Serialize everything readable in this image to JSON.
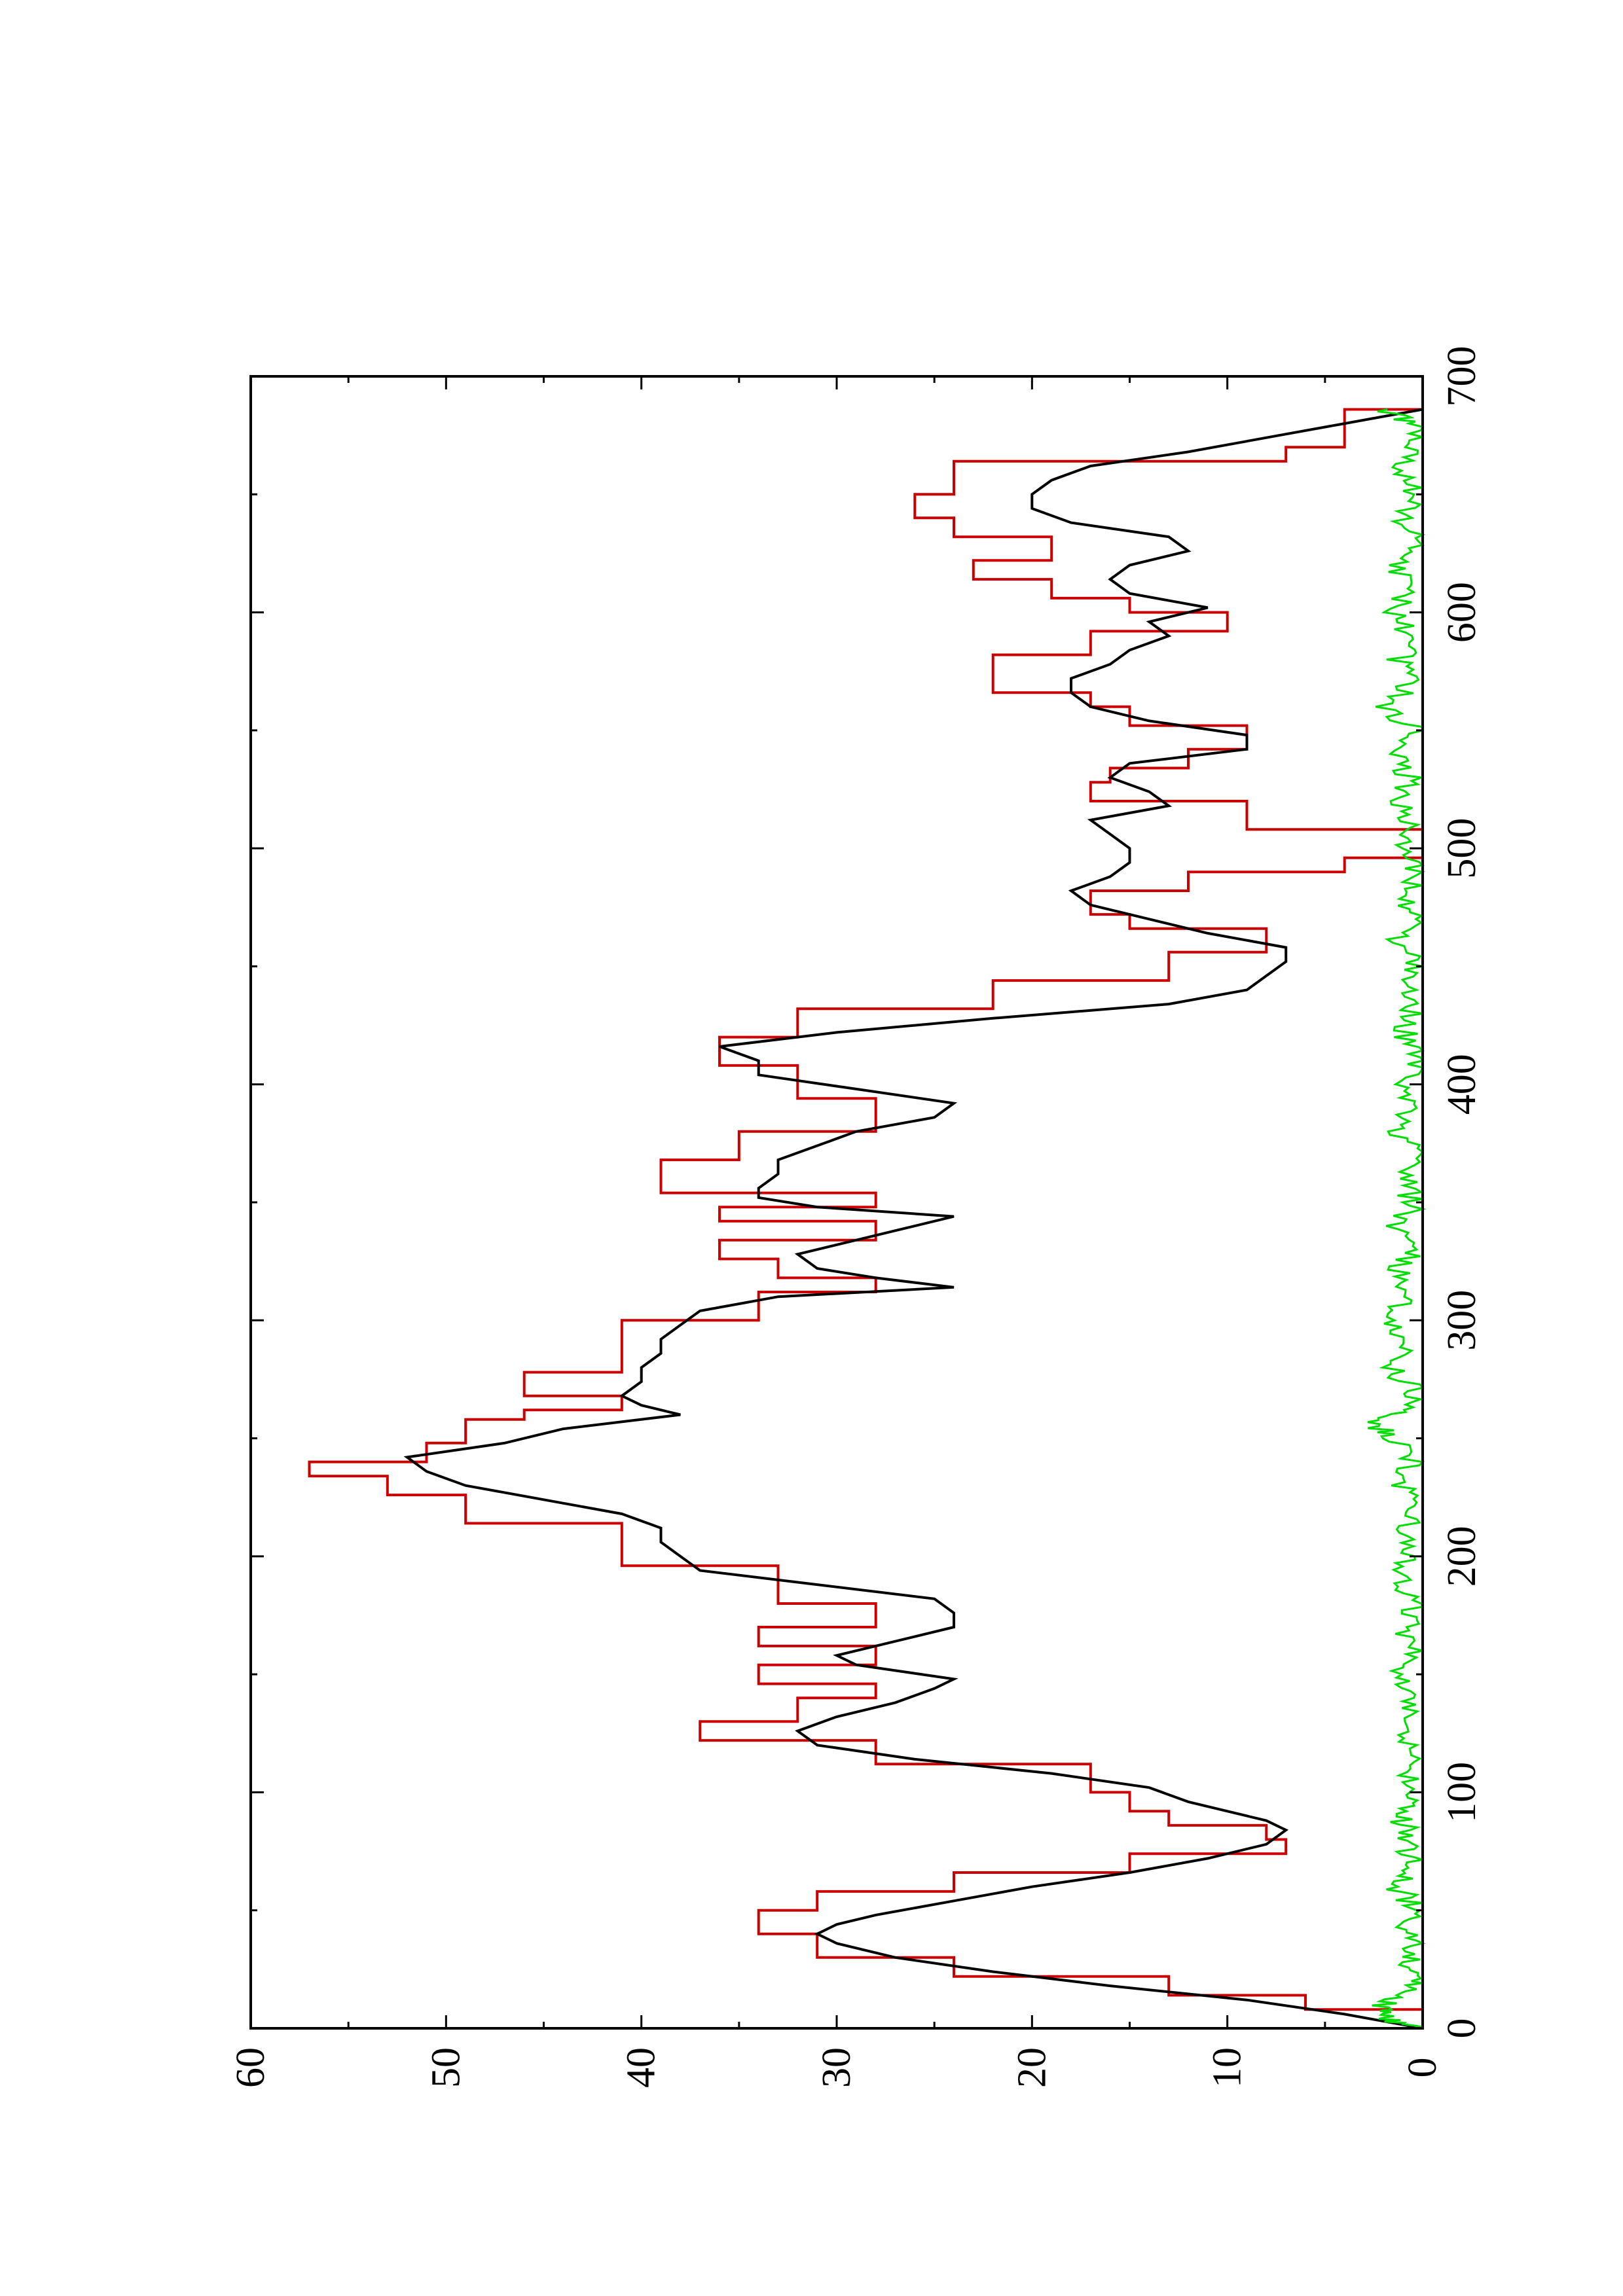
{
  "chart_data": {
    "type": "line",
    "orientation": "rotated-90-ccw",
    "title": "",
    "xlabel": "",
    "ylabel": "",
    "xlim": [
      0,
      700
    ],
    "ylim": [
      0,
      60
    ],
    "xticks": [
      0,
      100,
      200,
      300,
      400,
      500,
      600,
      700
    ],
    "yticks": [
      0,
      10,
      20,
      30,
      40,
      50,
      60
    ],
    "x_tick_labels": [
      "0",
      "100",
      "200",
      "300",
      "400",
      "500",
      "600",
      "700"
    ],
    "y_tick_labels": [
      "0",
      "10",
      "20",
      "30",
      "40",
      "50",
      "60"
    ],
    "grid": false,
    "legend": "none",
    "series": [
      {
        "color": "#cc0000",
        "style": "step",
        "x": [
          0,
          8,
          14,
          22,
          30,
          40,
          50,
          58,
          66,
          74,
          80,
          86,
          92,
          100,
          112,
          122,
          130,
          140,
          146,
          154,
          162,
          170,
          180,
          196,
          214,
          226,
          234,
          240,
          248,
          258,
          262,
          268,
          278,
          300,
          312,
          318,
          326,
          334,
          342,
          348,
          354,
          368,
          380,
          394,
          408,
          420,
          432,
          444,
          456,
          466,
          472,
          482,
          490,
          496,
          508,
          520,
          528,
          534,
          542,
          552,
          560,
          566,
          582,
          592,
          600,
          606,
          614,
          622,
          632,
          640,
          650,
          664,
          670,
          686
        ],
        "y": [
          0,
          6,
          13,
          24,
          31,
          34,
          31,
          24,
          15,
          7,
          8,
          13,
          15,
          17,
          28,
          37,
          32,
          28,
          34,
          28,
          34,
          28,
          33,
          41,
          49,
          53,
          57,
          51,
          49,
          46,
          41,
          46,
          41,
          34,
          28,
          33,
          36,
          28,
          36,
          28,
          39,
          35,
          28,
          32,
          36,
          32,
          22,
          13,
          8,
          15,
          17,
          12,
          4,
          0,
          9,
          17,
          16,
          12,
          9,
          15,
          17,
          22,
          17,
          10,
          15,
          19,
          23,
          19,
          24,
          26,
          24,
          7,
          4,
          0
        ]
      },
      {
        "color": "#000000",
        "style": "line",
        "x": [
          0,
          6,
          12,
          18,
          24,
          30,
          36,
          40,
          44,
          48,
          54,
          60,
          66,
          72,
          78,
          84,
          88,
          92,
          96,
          102,
          108,
          114,
          120,
          126,
          132,
          138,
          144,
          148,
          154,
          158,
          164,
          170,
          176,
          182,
          188,
          194,
          200,
          206,
          212,
          218,
          224,
          230,
          236,
          242,
          248,
          254,
          260,
          264,
          268,
          274,
          280,
          286,
          292,
          298,
          304,
          310,
          314,
          318,
          322,
          328,
          334,
          340,
          344,
          348,
          352,
          356,
          362,
          368,
          374,
          380,
          386,
          392,
          398,
          404,
          410,
          416,
          422,
          428,
          434,
          440,
          446,
          452,
          458,
          464,
          470,
          476,
          482,
          488,
          494,
          500,
          506,
          512,
          518,
          524,
          530,
          536,
          542,
          548,
          554,
          560,
          566,
          572,
          578,
          584,
          590,
          596,
          602,
          608,
          614,
          620,
          626,
          632,
          638,
          644,
          650,
          656,
          662,
          668,
          674,
          680,
          686
        ],
        "y": [
          0,
          4,
          9,
          16,
          22,
          27,
          30,
          31,
          30,
          28,
          24,
          20,
          15,
          11,
          8,
          7,
          8,
          10,
          12,
          14,
          19,
          26,
          31,
          32,
          30,
          27,
          25,
          24,
          29,
          30,
          27,
          24,
          24,
          25,
          31,
          37,
          38,
          39,
          39,
          41,
          45,
          49,
          51,
          52,
          47,
          44,
          38,
          40,
          41,
          40,
          40,
          39,
          39,
          38,
          37,
          33,
          24,
          28,
          31,
          32,
          29,
          26,
          24,
          31,
          34,
          34,
          33,
          33,
          31,
          29,
          25,
          24,
          29,
          34,
          34,
          36,
          30,
          22,
          13,
          9,
          8,
          7,
          7,
          11,
          14,
          17,
          18,
          16,
          15,
          15,
          16,
          17,
          13,
          14,
          16,
          15,
          9,
          9,
          14,
          17,
          18,
          18,
          16,
          15,
          13,
          14,
          11,
          15,
          16,
          15,
          12,
          13,
          18,
          20,
          20,
          19,
          17,
          12,
          8,
          4,
          0
        ]
      },
      {
        "color": "#00dd00",
        "style": "line",
        "noise": true,
        "x": [
          0,
          4,
          8,
          14,
          20,
          28,
          36,
          44,
          52,
          60,
          68,
          76,
          84,
          92,
          100,
          110,
          120,
          130,
          140,
          150,
          160,
          170,
          180,
          190,
          200,
          210,
          220,
          230,
          240,
          250,
          256,
          262,
          270,
          280,
          290,
          300,
          310,
          320,
          330,
          340,
          350,
          360,
          370,
          380,
          390,
          400,
          410,
          420,
          430,
          440,
          450,
          460,
          470,
          480,
          490,
          500,
          510,
          520,
          530,
          540,
          550,
          560,
          570,
          580,
          590,
          600,
          610,
          620,
          630,
          640,
          650,
          660,
          670,
          680,
          686
        ],
        "y": [
          0,
          1.8,
          2.3,
          1.2,
          0.5,
          0.9,
          0.2,
          1.1,
          0.4,
          1.4,
          0.3,
          1.0,
          0.6,
          1.5,
          0.2,
          0.9,
          0.4,
          1.2,
          0.3,
          1.0,
          0.5,
          0.8,
          0.3,
          1.1,
          0.6,
          0.9,
          0.2,
          1.2,
          0.4,
          1.5,
          2.6,
          1.0,
          0.4,
          1.6,
          0.5,
          1.8,
          0.7,
          1.3,
          0.4,
          1.2,
          0.5,
          0.9,
          0.3,
          1.1,
          0.6,
          0.8,
          0.2,
          1.0,
          0.4,
          0.6,
          0.2,
          1.3,
          0.5,
          0.8,
          0.3,
          1.0,
          0.4,
          1.4,
          0.6,
          1.5,
          0.4,
          1.8,
          0.7,
          1.2,
          0.5,
          1.6,
          0.6,
          1.4,
          0.5,
          1.1,
          0.3,
          1.2,
          0.4,
          0.6,
          1.8
        ]
      }
    ]
  }
}
